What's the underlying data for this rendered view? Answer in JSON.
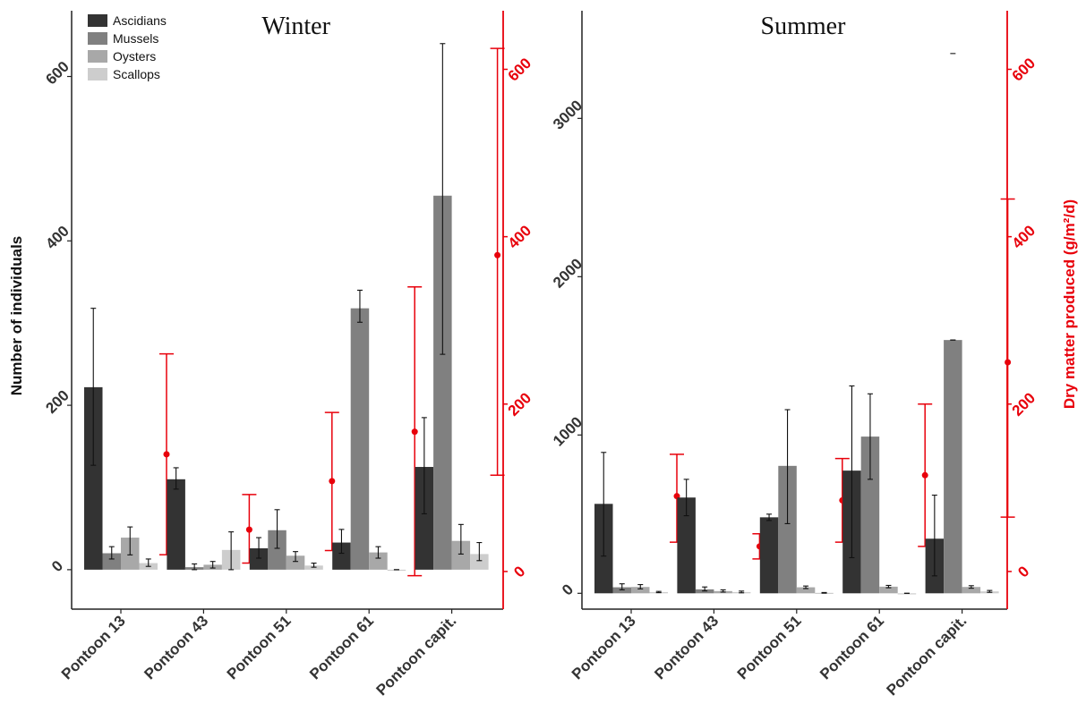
{
  "chart_data": [
    {
      "type": "bar",
      "title": "Winter",
      "categories": [
        "Pontoon 13",
        "Pontoon 43",
        "Pontoon 51",
        "Pontoon 61",
        "Pontoon capit."
      ],
      "ylabel": "Number of individuals",
      "ylim": [
        -48,
        680
      ],
      "yticks": [
        0,
        200,
        400,
        600
      ],
      "series": [
        {
          "name": "Ascidians",
          "color": "#333333",
          "values": [
            222,
            110,
            26,
            33,
            125
          ],
          "err_low": [
            127,
            98,
            14,
            20,
            68
          ],
          "err_high": [
            318,
            124,
            39,
            49,
            185
          ]
        },
        {
          "name": "Mussels",
          "color": "#808080",
          "values": [
            20,
            3,
            48,
            318,
            455
          ],
          "err_low": [
            13,
            0,
            26,
            301,
            262
          ],
          "err_high": [
            28,
            7,
            73,
            340,
            640
          ]
        },
        {
          "name": "Oysters",
          "color": "#a8a8a8",
          "values": [
            39,
            6,
            17,
            21,
            35
          ],
          "err_low": [
            18,
            2,
            10,
            14,
            19
          ],
          "err_high": [
            52,
            10,
            22,
            28,
            55
          ]
        },
        {
          "name": "Scallops",
          "color": "#cdcdcd",
          "values": [
            8,
            24,
            5,
            0,
            19
          ],
          "err_low": [
            4,
            0,
            3,
            0,
            11
          ],
          "err_high": [
            13,
            46,
            8,
            0,
            33
          ]
        }
      ],
      "secondary_axis": {
        "ylabel": "Dry matter produced  (g/m²/d)",
        "ylim": [
          -45,
          670
        ],
        "yticks": [
          0,
          200,
          400,
          600
        ],
        "color": "#e8000b",
        "values": [
          140,
          50,
          108,
          167,
          378
        ],
        "err_low": [
          20,
          10,
          25,
          -5,
          115
        ],
        "err_high": [
          260,
          92,
          190,
          340,
          625
        ]
      }
    },
    {
      "type": "bar",
      "title": "Summer",
      "categories": [
        "Pontoon 13",
        "Pontoon 43",
        "Pontoon 51",
        "Pontoon 61",
        "Pontoon capit."
      ],
      "ylim": [
        -100,
        3680
      ],
      "yticks": [
        0,
        1000,
        2000,
        3000
      ],
      "series": [
        {
          "name": "Ascidians",
          "color": "#333333",
          "values": [
            565,
            605,
            480,
            775,
            345
          ],
          "err_low": [
            235,
            490,
            460,
            225,
            110
          ],
          "err_high": [
            890,
            720,
            500,
            1310,
            620
          ]
        },
        {
          "name": "Mussels",
          "color": "#808080",
          "values": [
            38,
            25,
            805,
            990,
            1600
          ],
          "err_low": [
            22,
            15,
            440,
            720,
            1600
          ],
          "err_high": [
            60,
            40,
            1160,
            1260,
            1600
          ]
        },
        {
          "name": "Oysters",
          "color": "#a8a8a8",
          "values": [
            40,
            14,
            38,
            42,
            40
          ],
          "err_low": [
            28,
            8,
            30,
            35,
            32
          ],
          "err_high": [
            55,
            22,
            46,
            50,
            48
          ]
        },
        {
          "name": "Scallops",
          "color": "#cdcdcd",
          "values": [
            8,
            8,
            3,
            0,
            12
          ],
          "err_low": [
            4,
            3,
            1,
            0,
            6
          ],
          "err_high": [
            12,
            14,
            5,
            0,
            18
          ]
        }
      ],
      "outliers": [
        {
          "category": "Pontoon capit.",
          "series": "Mussels",
          "value": 3410
        }
      ],
      "secondary_axis": {
        "ylabel": "Dry matter produced  (g/m²/d)",
        "ylim": [
          -45,
          670
        ],
        "yticks": [
          0,
          200,
          400,
          600
        ],
        "color": "#e8000b",
        "values": [
          90,
          30,
          85,
          115,
          250
        ],
        "err_low": [
          35,
          15,
          35,
          30,
          65
        ],
        "err_high": [
          140,
          45,
          135,
          200,
          445
        ]
      }
    }
  ]
}
